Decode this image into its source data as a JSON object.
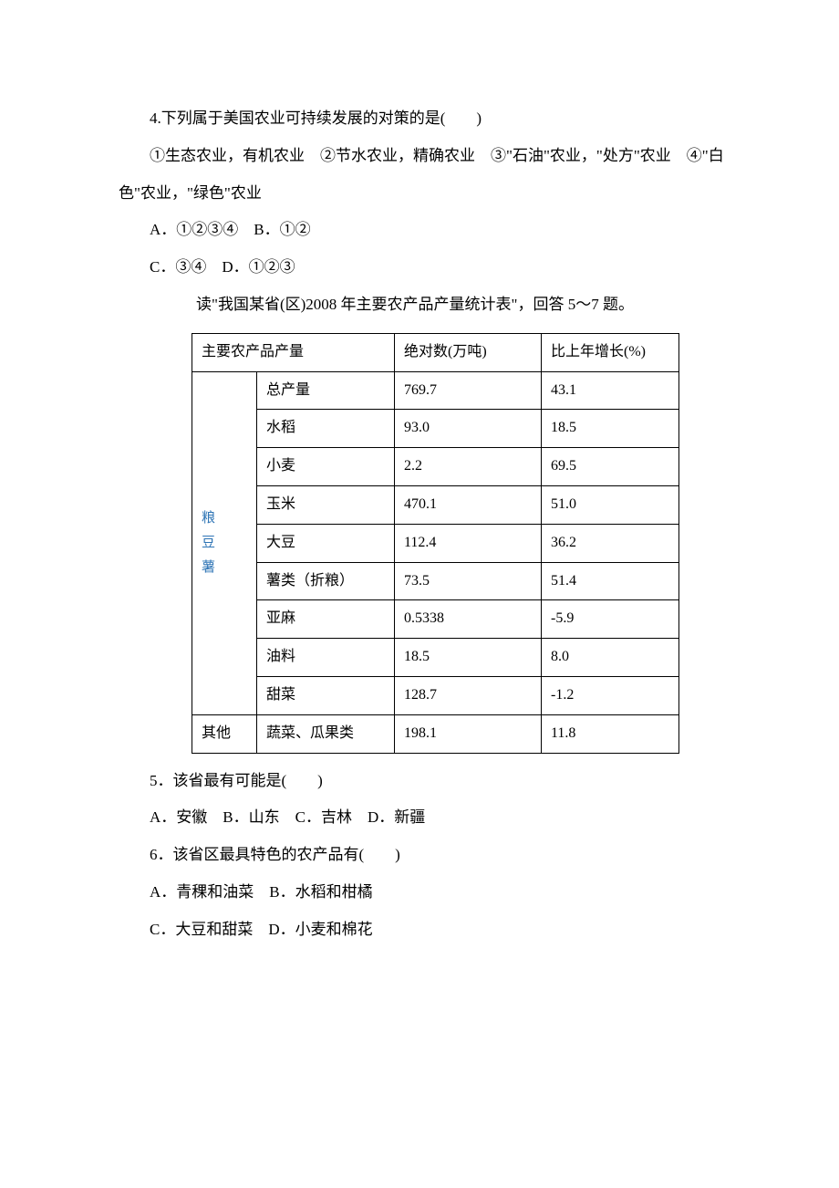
{
  "q4": {
    "stem": "4.下列属于美国农业可持续发展的对策的是(　　)",
    "cond": "①生态农业，有机农业　②节水农业，精确农业　③\"石油\"农业，\"处方\"农业　④\"白色\"农业，\"绿色\"农业",
    "optAB": "A．①②③④　B．①②",
    "optCD": "C．③④　D．①②③"
  },
  "table_intro": "读\"我国某省(区)2008 年主要农产品产量统计表\"，回答 5～7 题。",
  "table": {
    "header": {
      "c1": "主要农产品产量",
      "c2": "绝对数(万吨)",
      "c3": "比上年增长(%)"
    },
    "group1_label": "粮\n豆\n薯",
    "group2_label": "其他",
    "rows": [
      {
        "name": "总产量",
        "abs": "769.7",
        "pct": "43.1"
      },
      {
        "name": "水稻",
        "abs": "93.0",
        "pct": "18.5"
      },
      {
        "name": "小麦",
        "abs": "2.2",
        "pct": "69.5"
      },
      {
        "name": "玉米",
        "abs": "470.1",
        "pct": "51.0"
      },
      {
        "name": "大豆",
        "abs": "112.4",
        "pct": "36.2"
      },
      {
        "name": "薯类（折粮）",
        "abs": "73.5",
        "pct": "51.4"
      },
      {
        "name": "亚麻",
        "abs": "0.5338",
        "pct": "-5.9"
      },
      {
        "name": "油料",
        "abs": "18.5",
        "pct": "8.0"
      },
      {
        "name": "甜菜",
        "abs": "128.7",
        "pct": "-1.2"
      },
      {
        "name": "蔬菜、瓜果类",
        "abs": "198.1",
        "pct": "11.8"
      }
    ]
  },
  "q5": {
    "stem": "5．该省最有可能是(　　)",
    "opts": "A．安徽　B．山东　C．吉林　D．新疆"
  },
  "q6": {
    "stem": "6．该省区最具特色的农产品有(　　)",
    "optAB": "A．青稞和油菜　B．水稻和柑橘",
    "optCD": "C．大豆和甜菜　D．小麦和棉花"
  }
}
